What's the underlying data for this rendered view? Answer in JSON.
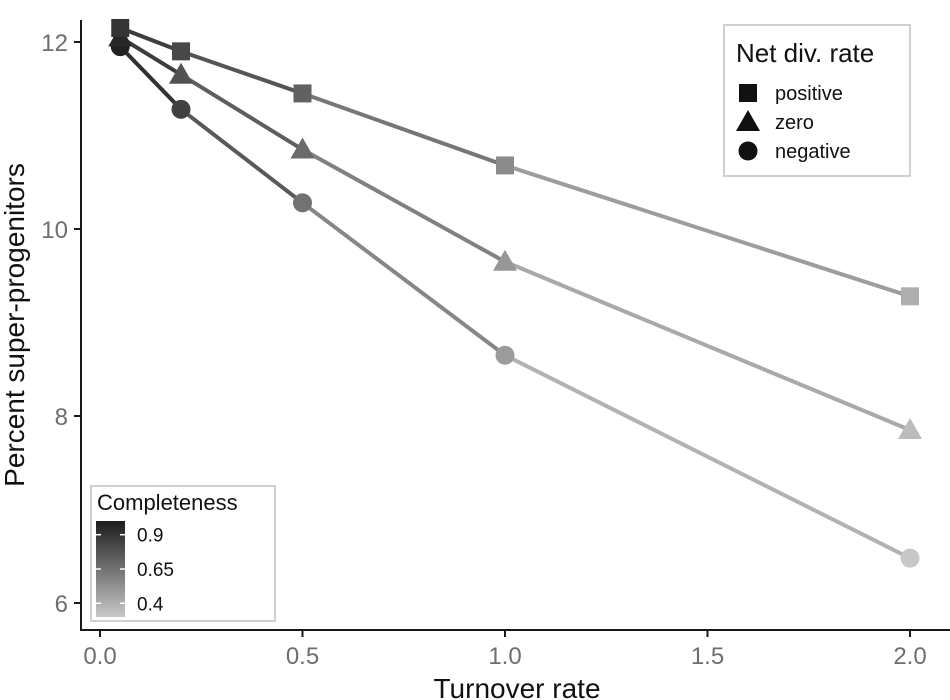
{
  "chart_data": {
    "type": "line",
    "xlabel": "Turnover rate",
    "ylabel": "Percent super-progenitors",
    "xlim": [
      0.0,
      2.0
    ],
    "ylim": [
      6,
      12
    ],
    "x_ticks": [
      "0.0",
      "0.5",
      "1.0",
      "1.5",
      "2.0"
    ],
    "y_ticks": [
      "6",
      "8",
      "10",
      "12"
    ],
    "grid": false,
    "x": [
      0.05,
      0.2,
      0.5,
      1.0,
      2.0
    ],
    "series": [
      {
        "name": "positive",
        "marker": "square",
        "values": [
          12.15,
          11.9,
          11.45,
          10.68,
          9.28
        ],
        "completeness": [
          0.9,
          0.82,
          0.72,
          0.55,
          0.4
        ]
      },
      {
        "name": "zero",
        "marker": "triangle",
        "values": [
          12.05,
          11.65,
          10.85,
          9.65,
          7.85
        ],
        "completeness": [
          0.95,
          0.78,
          0.68,
          0.5,
          0.35
        ]
      },
      {
        "name": "negative",
        "marker": "circle",
        "values": [
          11.95,
          11.28,
          10.28,
          8.65,
          6.48
        ],
        "completeness": [
          0.98,
          0.85,
          0.65,
          0.48,
          0.3
        ]
      }
    ],
    "legend_shape": {
      "title": "Net div. rate",
      "placement": "top-right",
      "entries": [
        "positive",
        "zero",
        "negative"
      ]
    },
    "legend_color": {
      "title": "Completeness",
      "placement": "bottom-left",
      "ticks": [
        "0.9",
        "0.65",
        "0.4"
      ],
      "tick_values": [
        0.9,
        0.65,
        0.4
      ],
      "range": [
        0.3,
        1.0
      ],
      "color_low": "#c8c8c8",
      "color_high": "#1c1c1c"
    }
  }
}
